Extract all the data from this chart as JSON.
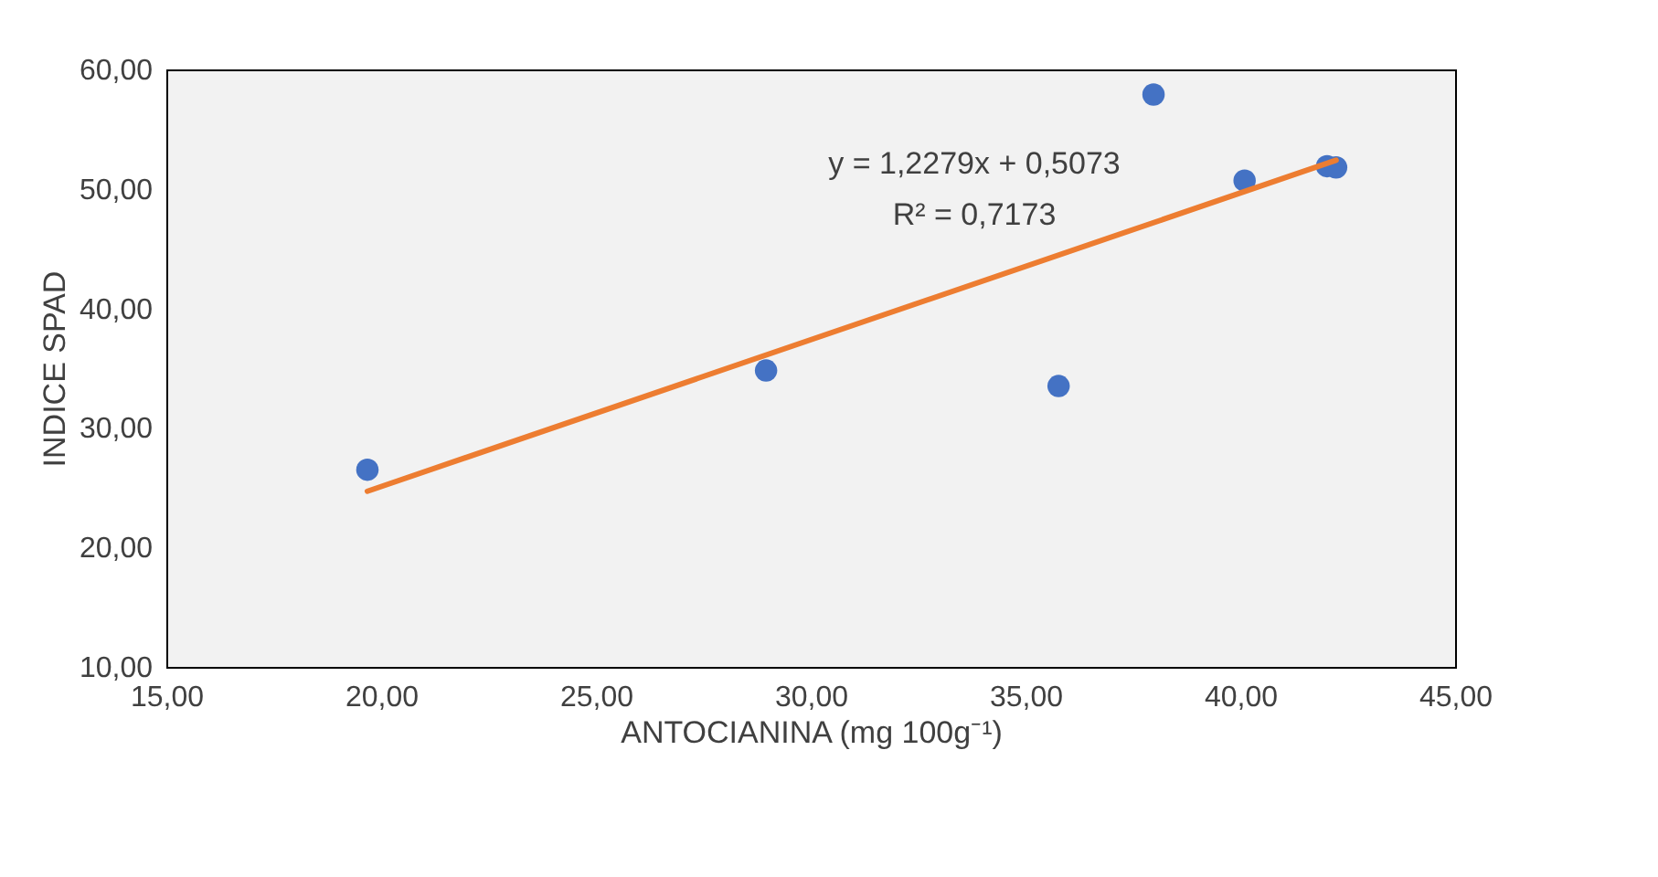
{
  "chart_data": {
    "type": "scatter",
    "xlabel": "ANTOCIANINA (mg 100g⁻¹)",
    "ylabel": "INDICE SPAD",
    "series": [
      {
        "type": "scatter",
        "color": "#4472c4",
        "marker": "circle",
        "x": [
          19.68,
          28.96,
          35.77,
          37.98,
          40.1,
          42.02,
          42.23
        ],
        "values": [
          26.5,
          34.8,
          33.5,
          57.9,
          50.7,
          51.9,
          51.8
        ]
      },
      {
        "type": "line",
        "color": "#ed7d31",
        "x": [
          19.68,
          42.23
        ],
        "values": [
          24.7,
          52.4
        ],
        "line_style": "solid"
      }
    ],
    "annotations": [
      "y = 1,2279x + 0,5073",
      "R² = 0,7173"
    ],
    "xlim": [
      15,
      45
    ],
    "ylim": [
      10,
      60
    ],
    "xticks": [
      {
        "value": 15,
        "label": "15,00"
      },
      {
        "value": 20,
        "label": "20,00"
      },
      {
        "value": 25,
        "label": "25,00"
      },
      {
        "value": 30,
        "label": "30,00"
      },
      {
        "value": 35,
        "label": "35,00"
      },
      {
        "value": 40,
        "label": "40,00"
      },
      {
        "value": 45,
        "label": "45,00"
      }
    ],
    "yticks": [
      {
        "value": 10,
        "label": "10,00"
      },
      {
        "value": 20,
        "label": "20,00"
      },
      {
        "value": 30,
        "label": "30,00"
      },
      {
        "value": 40,
        "label": "40,00"
      },
      {
        "value": 50,
        "label": "50,00"
      },
      {
        "value": 60,
        "label": "60,00"
      }
    ],
    "grid": false
  }
}
